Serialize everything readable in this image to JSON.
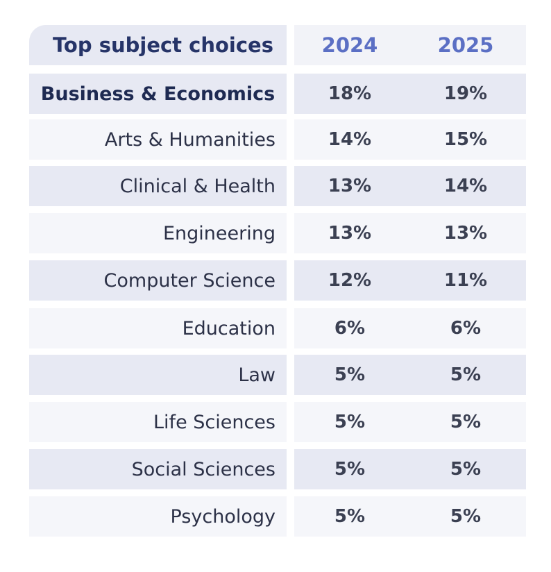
{
  "chart_data": {
    "type": "table",
    "title": "Top subject choices",
    "columns": [
      "2024",
      "2025"
    ],
    "rows": [
      {
        "subject": "Business & Economics",
        "y2024": "18%",
        "y2025": "19%"
      },
      {
        "subject": "Arts & Humanities",
        "y2024": "14%",
        "y2025": "15%"
      },
      {
        "subject": "Clinical & Health",
        "y2024": "13%",
        "y2025": "14%"
      },
      {
        "subject": "Engineering",
        "y2024": "13%",
        "y2025": "13%"
      },
      {
        "subject": "Computer Science",
        "y2024": "12%",
        "y2025": "11%"
      },
      {
        "subject": "Education",
        "y2024": "6%",
        "y2025": "6%"
      },
      {
        "subject": "Law",
        "y2024": "5%",
        "y2025": "5%"
      },
      {
        "subject": "Life Sciences",
        "y2024": "5%",
        "y2025": "5%"
      },
      {
        "subject": "Social Sciences",
        "y2024": "5%",
        "y2025": "5%"
      },
      {
        "subject": "Psychology",
        "y2024": "5%",
        "y2025": "5%"
      }
    ]
  },
  "colors": {
    "header_title": "#263468",
    "header_year": "#5b6fc4",
    "row_dark": "#e7e9f3",
    "row_light": "#f5f6fa"
  }
}
